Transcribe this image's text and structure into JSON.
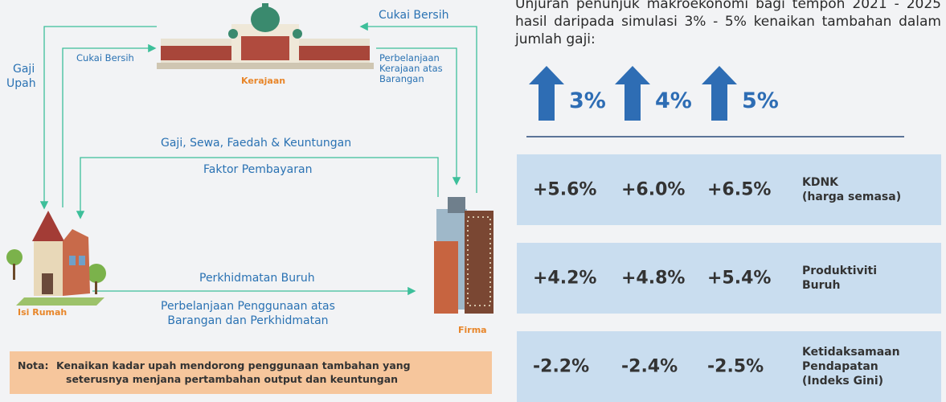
{
  "diagram": {
    "nodes": {
      "government": "Kerajaan",
      "household": "Isi Rumah",
      "firm": "Firma"
    },
    "flows": {
      "tax_firm": "Cukai Bersih",
      "tax_household": "Cukai Bersih",
      "wages_government": [
        "Gaji",
        "Upah"
      ],
      "government_spending": [
        "Perbelanjaan",
        "Kerajaan atas",
        "Barangan"
      ],
      "factor_income": "Gaji, Sewa, Faedah & Keuntungan",
      "factor_payment": "Faktor Pembayaran",
      "labour": "Perkhidmatan Buruh",
      "consumption": [
        "Perbelanjaan Penggunaan atas",
        "Barangan dan Perkhidmatan"
      ]
    }
  },
  "note": {
    "label": "Nota:",
    "text": [
      "Kenaikan kadar upah mendorong penggunaan tambahan yang",
      "seterusnya menjana pertambahan output dan keuntungan"
    ]
  },
  "panel": {
    "intro": "Unjuran penunjuk makroekonomi bagi tempoh 2021 - 2025 hasil daripada simulasi 3% - 5% kenaikan tambahan dalam jumlah gaji:",
    "scenarios": [
      "3%",
      "4%",
      "5%"
    ],
    "rows": [
      {
        "values": [
          "+5.6%",
          "+6.0%",
          "+6.5%"
        ],
        "label": [
          "KDNK",
          "(harga semasa)"
        ]
      },
      {
        "values": [
          "+4.2%",
          "+4.8%",
          "+5.4%"
        ],
        "label": [
          "Produktiviti",
          "Buruh"
        ]
      },
      {
        "values": [
          "-2.2%",
          "-2.4%",
          "-2.5%"
        ],
        "label": [
          "Ketidaksamaan",
          "Pendapatan",
          "(Indeks Gini)"
        ]
      }
    ]
  }
}
